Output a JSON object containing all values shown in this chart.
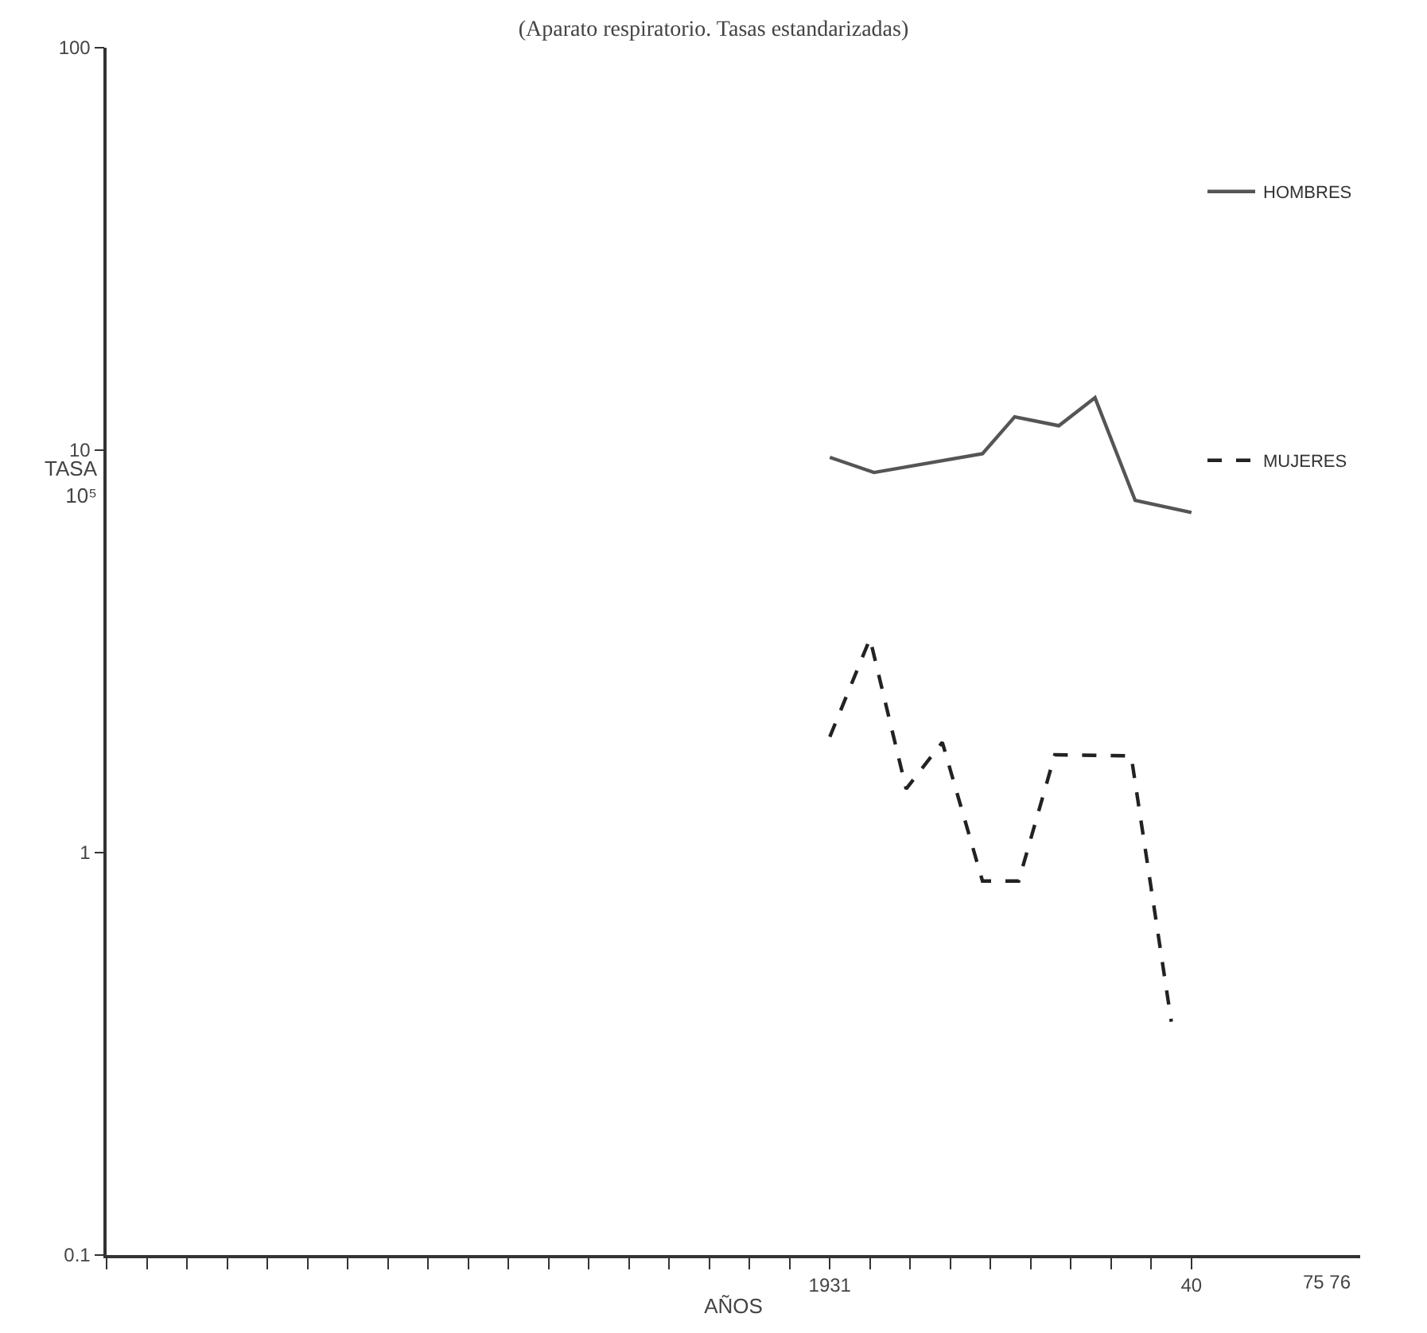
{
  "chart_data": {
    "type": "line",
    "title": "(Aparato respiratorio. Tasas estandarizadas)",
    "xlabel": "AÑOS",
    "ylabel": "TASA\n10⁵",
    "log": "y",
    "xlim": [
      1913,
      1944.2
    ],
    "xticks": [
      {
        "value": 1913,
        "label": null
      },
      {
        "value": 1914,
        "label": null
      },
      {
        "value": 1915,
        "label": null
      },
      {
        "value": 1916,
        "label": null
      },
      {
        "value": 1917,
        "label": null
      },
      {
        "value": 1918,
        "label": null
      },
      {
        "value": 1919,
        "label": null
      },
      {
        "value": 1920,
        "label": null
      },
      {
        "value": 1921,
        "label": null
      },
      {
        "value": 1922,
        "label": null
      },
      {
        "value": 1923,
        "label": null
      },
      {
        "value": 1924,
        "label": null
      },
      {
        "value": 1925,
        "label": null
      },
      {
        "value": 1926,
        "label": null
      },
      {
        "value": 1927,
        "label": null
      },
      {
        "value": 1928,
        "label": null
      },
      {
        "value": 1929,
        "label": null
      },
      {
        "value": 1930,
        "label": null
      },
      1931,
      {
        "value": 1932,
        "label": null
      },
      {
        "value": 1933,
        "label": null
      },
      {
        "value": 1934,
        "label": null
      },
      {
        "value": 1935,
        "label": null
      },
      {
        "value": 1936,
        "label": null
      },
      {
        "value": 1937,
        "label": null
      },
      {
        "value": 1938,
        "label": null
      },
      {
        "value": 1939,
        "label": null
      },
      {
        "value": 1940,
        "label": "40"
      }
    ],
    "ylim": [
      0.1,
      100
    ],
    "yticks": [
      {
        "value": 0.1,
        "label": "0.1"
      },
      1,
      10,
      100
    ],
    "legend": "top right",
    "marker": "none",
    "series": [
      {
        "name": "HOMBRES",
        "color": "#555555",
        "line_style": "solid",
        "x": [
          1931,
          1932.1,
          1934.8,
          1935.6,
          1936.7,
          1937.6,
          1938.6,
          1940
        ],
        "values": [
          9.6,
          8.8,
          9.8,
          12.1,
          11.5,
          13.5,
          7.5,
          7.0
        ]
      },
      {
        "name": "MUJERES",
        "color": "#222222",
        "line_style": "dashed",
        "x": [
          1931,
          1932,
          1932.9,
          1933.8,
          1934.8,
          1935.7,
          1936.6,
          1938.5,
          1939.5
        ],
        "values": [
          1.94,
          3.4,
          1.44,
          1.88,
          0.85,
          0.85,
          1.75,
          1.74,
          0.38
        ]
      }
    ],
    "annotations": [
      "75 76"
    ]
  }
}
